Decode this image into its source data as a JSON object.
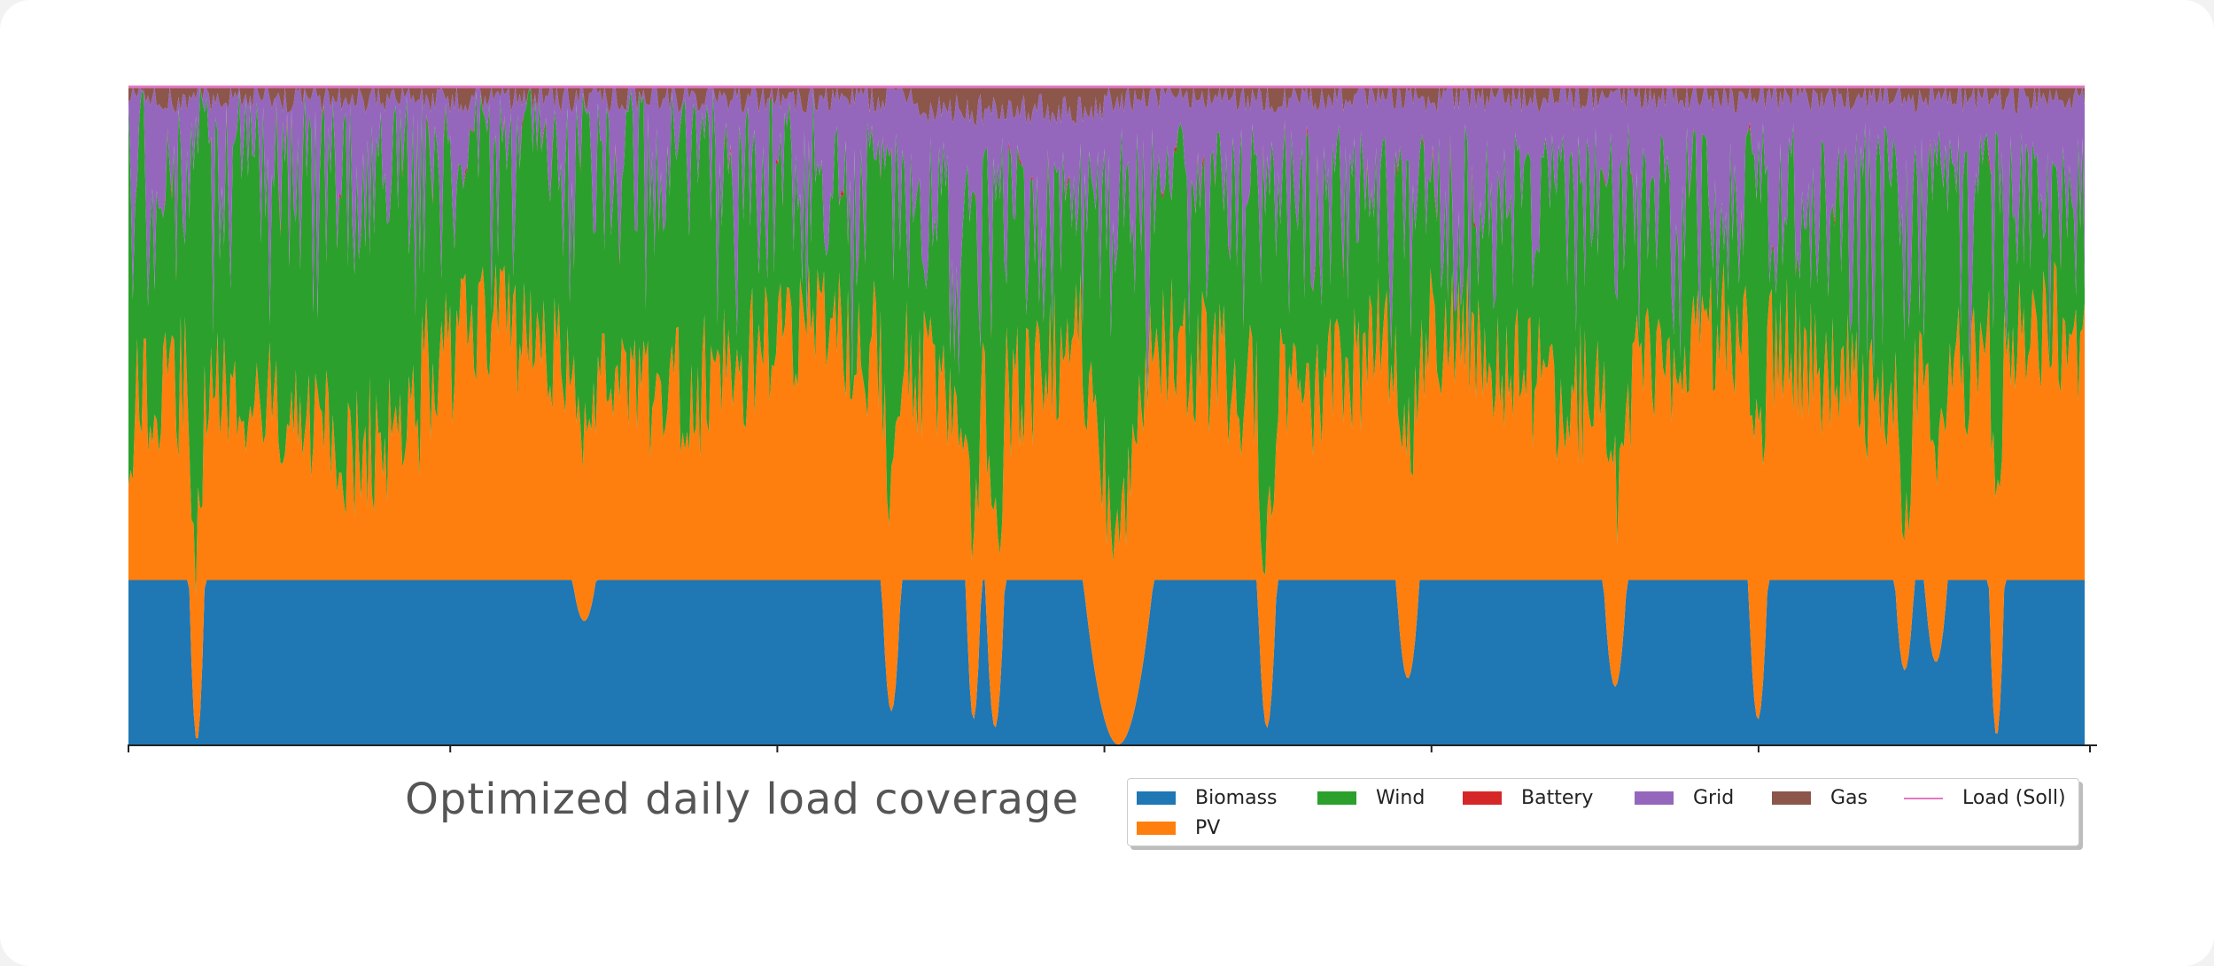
{
  "chart_data": {
    "type": "area",
    "title": "Optimized daily load coverage",
    "stacked": true,
    "normalized": true,
    "xlabel": "",
    "ylabel": "",
    "ylim": [
      0,
      1
    ],
    "legend_position": "bottom-right",
    "grid": false,
    "series": [
      {
        "name": "Biomass",
        "color": "#1f77b4"
      },
      {
        "name": "PV",
        "color": "#ff7f0e"
      },
      {
        "name": "Wind",
        "color": "#2ca02c"
      },
      {
        "name": "Battery",
        "color": "#d62728"
      },
      {
        "name": "Grid",
        "color": "#9467bd"
      },
      {
        "name": "Gas",
        "color": "#8c564b"
      },
      {
        "name": "Load (Soll)",
        "color": "#e377c2",
        "style": "line"
      }
    ],
    "approx_values": {
      "Biomass": 0.25,
      "PV": 0.33,
      "Wind": 0.32,
      "Battery": 0.005,
      "Grid": 0.07,
      "Gas": 0.025,
      "Load (Soll)": 1.0
    },
    "biomass_dips": [
      {
        "center": 0.035,
        "depth": 0.98,
        "width": 0.004
      },
      {
        "center": 0.233,
        "depth": 0.25,
        "width": 0.006
      },
      {
        "center": 0.39,
        "depth": 0.8,
        "width": 0.005
      },
      {
        "center": 0.432,
        "depth": 0.85,
        "width": 0.004
      },
      {
        "center": 0.443,
        "depth": 0.9,
        "width": 0.005
      },
      {
        "center": 0.506,
        "depth": 1.0,
        "width": 0.018
      },
      {
        "center": 0.582,
        "depth": 0.9,
        "width": 0.005
      },
      {
        "center": 0.654,
        "depth": 0.6,
        "width": 0.006
      },
      {
        "center": 0.76,
        "depth": 0.65,
        "width": 0.006
      },
      {
        "center": 0.833,
        "depth": 0.85,
        "width": 0.005
      },
      {
        "center": 0.908,
        "depth": 0.55,
        "width": 0.005
      },
      {
        "center": 0.924,
        "depth": 0.5,
        "width": 0.006
      },
      {
        "center": 0.955,
        "depth": 0.95,
        "width": 0.004
      }
    ]
  }
}
